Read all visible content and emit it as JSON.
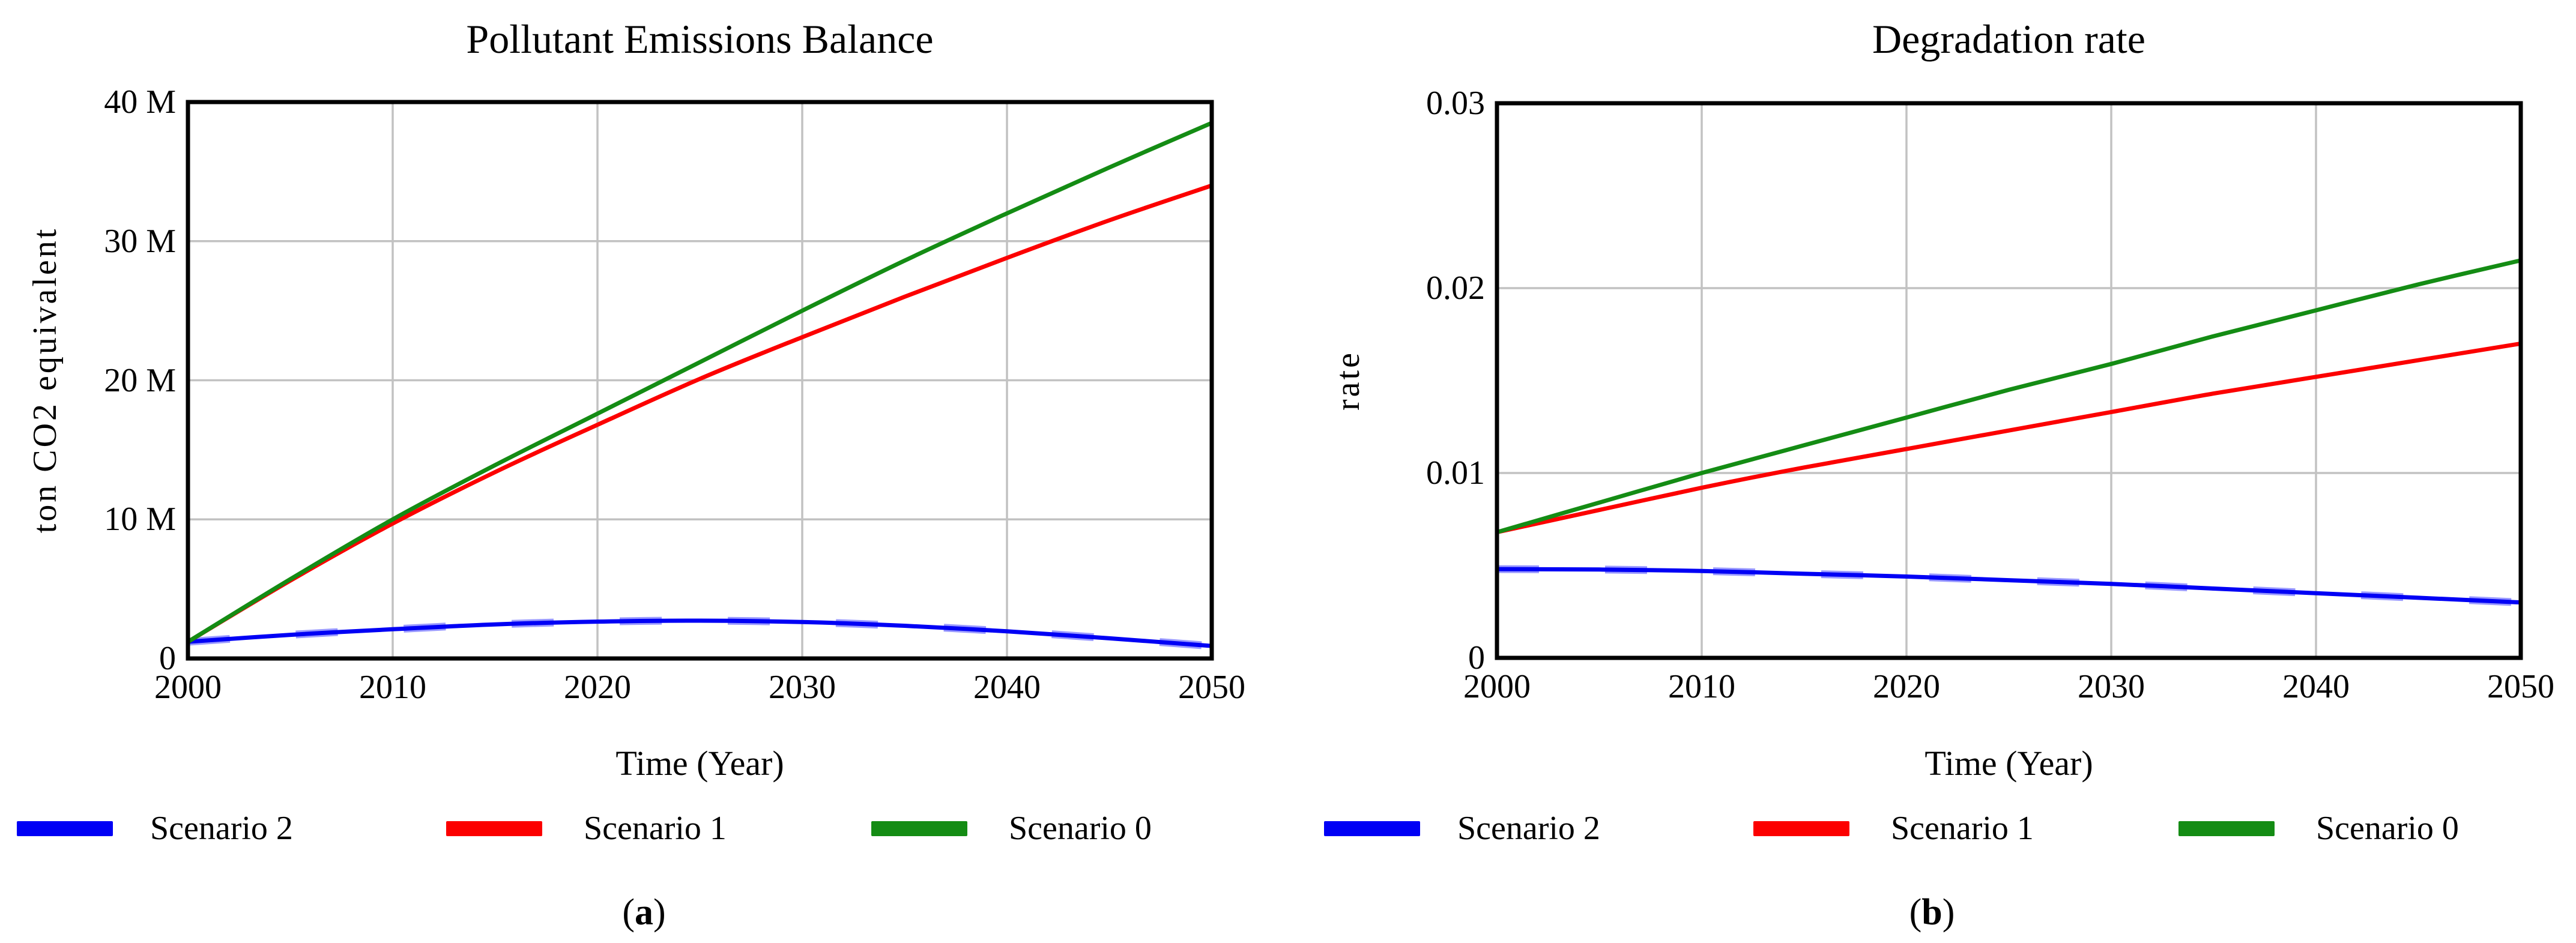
{
  "page_background": "#ffffff",
  "colors": {
    "scenario0": "#148c14",
    "scenario1": "#fc0000",
    "scenario2": "#0000f5",
    "halo": "#9a9aff",
    "grid": "#c2c2c2",
    "frame": "#000000"
  },
  "legend": {
    "items": [
      {
        "label": "Scenario 2",
        "color_key": "scenario2"
      },
      {
        "label": "Scenario 1",
        "color_key": "scenario1"
      },
      {
        "label": "Scenario 0",
        "color_key": "scenario0"
      }
    ]
  },
  "captions": {
    "left": {
      "open": "(",
      "letter": "a",
      "close": ")"
    },
    "right": {
      "open": "(",
      "letter": "b",
      "close": ")"
    }
  },
  "chart_data": [
    {
      "type": "line",
      "title": "Pollutant Emissions Balance",
      "xlabel": "Time (Year)",
      "ylabel": "ton CO2 equivalent",
      "xlim": [
        2000,
        2050
      ],
      "ylim": [
        0,
        40000000
      ],
      "grid": true,
      "legend_position": "bottom",
      "x_ticks": [
        {
          "v": 2000,
          "label": "2000"
        },
        {
          "v": 2010,
          "label": "2010"
        },
        {
          "v": 2020,
          "label": "2020"
        },
        {
          "v": 2030,
          "label": "2030"
        },
        {
          "v": 2040,
          "label": "2040"
        },
        {
          "v": 2050,
          "label": "2050"
        }
      ],
      "y_ticks": [
        {
          "v": 0,
          "label": "0"
        },
        {
          "v": 10000000,
          "label": "10 M"
        },
        {
          "v": 20000000,
          "label": "20 M"
        },
        {
          "v": 30000000,
          "label": "30 M"
        },
        {
          "v": 40000000,
          "label": "40 M"
        }
      ],
      "x": [
        2000,
        2005,
        2010,
        2015,
        2020,
        2025,
        2030,
        2035,
        2040,
        2045,
        2050
      ],
      "series": [
        {
          "name": "Scenario 2",
          "color_key": "scenario2",
          "halo": true,
          "values": [
            1200000,
            1700000,
            2100000,
            2450000,
            2650000,
            2720000,
            2620000,
            2350000,
            1950000,
            1450000,
            900000
          ]
        },
        {
          "name": "Scenario 1",
          "color_key": "scenario1",
          "values": [
            1200000,
            5600000,
            9700000,
            13400000,
            16800000,
            20100000,
            23100000,
            26000000,
            28800000,
            31500000,
            34000000
          ]
        },
        {
          "name": "Scenario 0",
          "color_key": "scenario0",
          "values": [
            1200000,
            5700000,
            10000000,
            13900000,
            17600000,
            21300000,
            25000000,
            28600000,
            32000000,
            35300000,
            38500000
          ]
        }
      ]
    },
    {
      "type": "line",
      "title": "Degradation rate",
      "xlabel": "Time (Year)",
      "ylabel": "rate",
      "xlim": [
        2000,
        2050
      ],
      "ylim": [
        0,
        0.03
      ],
      "grid": true,
      "legend_position": "bottom",
      "x_ticks": [
        {
          "v": 2000,
          "label": "2000"
        },
        {
          "v": 2010,
          "label": "2010"
        },
        {
          "v": 2020,
          "label": "2020"
        },
        {
          "v": 2030,
          "label": "2030"
        },
        {
          "v": 2040,
          "label": "2040"
        },
        {
          "v": 2050,
          "label": "2050"
        }
      ],
      "y_ticks": [
        {
          "v": 0,
          "label": "0"
        },
        {
          "v": 0.01,
          "label": "0.01"
        },
        {
          "v": 0.02,
          "label": "0.02"
        },
        {
          "v": 0.03,
          "label": "0.03"
        }
      ],
      "x": [
        2000,
        2005,
        2010,
        2015,
        2020,
        2025,
        2030,
        2035,
        2040,
        2045,
        2050
      ],
      "series": [
        {
          "name": "Scenario 2",
          "color_key": "scenario2",
          "halo": true,
          "values": [
            0.0048,
            0.00478,
            0.0047,
            0.00455,
            0.0044,
            0.0042,
            0.004,
            0.00375,
            0.0035,
            0.00325,
            0.003
          ]
        },
        {
          "name": "Scenario 1",
          "color_key": "scenario1",
          "values": [
            0.0068,
            0.008,
            0.0092,
            0.0103,
            0.0113,
            0.0123,
            0.0133,
            0.0143,
            0.0152,
            0.0161,
            0.017
          ]
        },
        {
          "name": "Scenario 0",
          "color_key": "scenario0",
          "values": [
            0.0068,
            0.0084,
            0.01,
            0.0115,
            0.013,
            0.0145,
            0.0159,
            0.0174,
            0.0188,
            0.0202,
            0.0215
          ]
        }
      ]
    }
  ]
}
